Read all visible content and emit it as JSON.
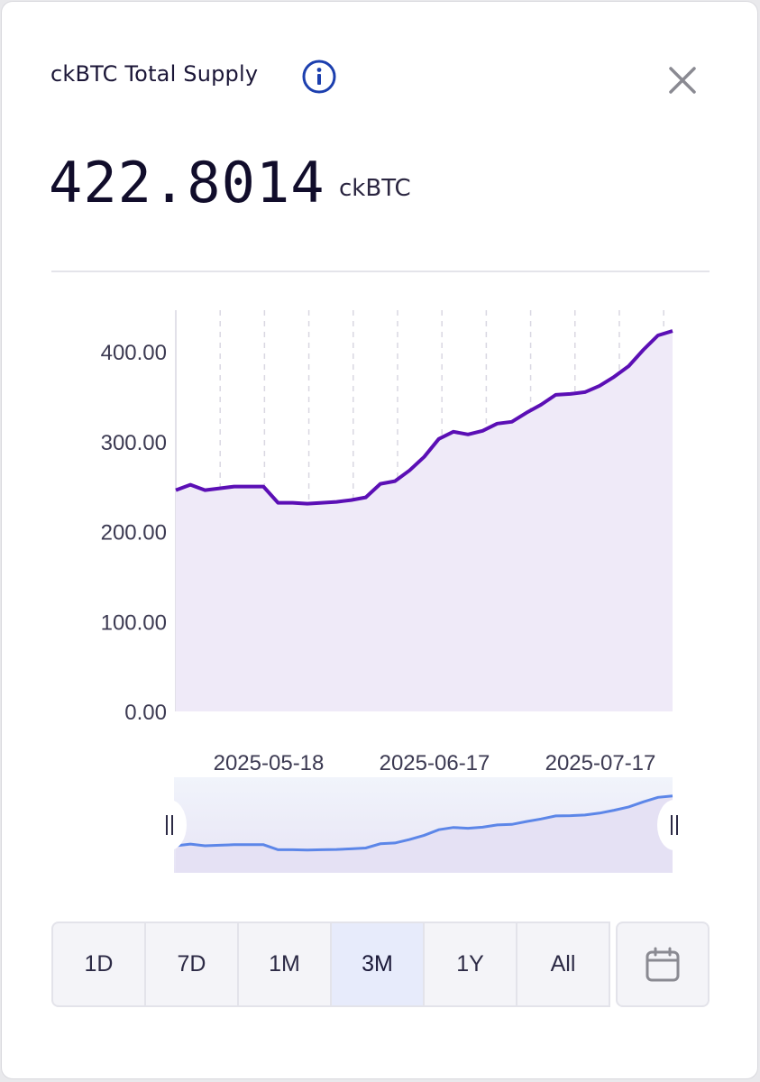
{
  "header": {
    "title": "ckBTC Total Supply",
    "value": "422.8014",
    "unit": "ckBTC"
  },
  "icons": {
    "info": "info-icon",
    "close": "close-icon",
    "calendar": "calendar-icon"
  },
  "colors": {
    "line": "#5b0fb5",
    "area": "#efeaf8",
    "navigator_line": "#5c86e8",
    "selected_range_bg": "#e7ebfb"
  },
  "range_buttons": [
    {
      "label": "1D",
      "selected": false
    },
    {
      "label": "7D",
      "selected": false
    },
    {
      "label": "1M",
      "selected": false
    },
    {
      "label": "3M",
      "selected": true
    },
    {
      "label": "1Y",
      "selected": false
    },
    {
      "label": "All",
      "selected": false
    }
  ],
  "chart_data": {
    "type": "area",
    "title": "",
    "xlabel": "",
    "ylabel": "",
    "ylim": [
      0,
      400
    ],
    "y_ticks": [
      "0.00",
      "100.00",
      "200.00",
      "300.00",
      "400.00"
    ],
    "x_tick_labels": [
      "2025-05-18",
      "2025-06-17",
      "2025-07-17"
    ],
    "grid": "vertical dashed",
    "series": [
      {
        "values": [
          246,
          252,
          246,
          248,
          250,
          250,
          250,
          232,
          232,
          231,
          232,
          233,
          235,
          238,
          253,
          256,
          268,
          283,
          303,
          311,
          308,
          312,
          320,
          322,
          332,
          341,
          352,
          353,
          355,
          362,
          372,
          384,
          402,
          418,
          423
        ]
      }
    ],
    "navigator": true
  }
}
